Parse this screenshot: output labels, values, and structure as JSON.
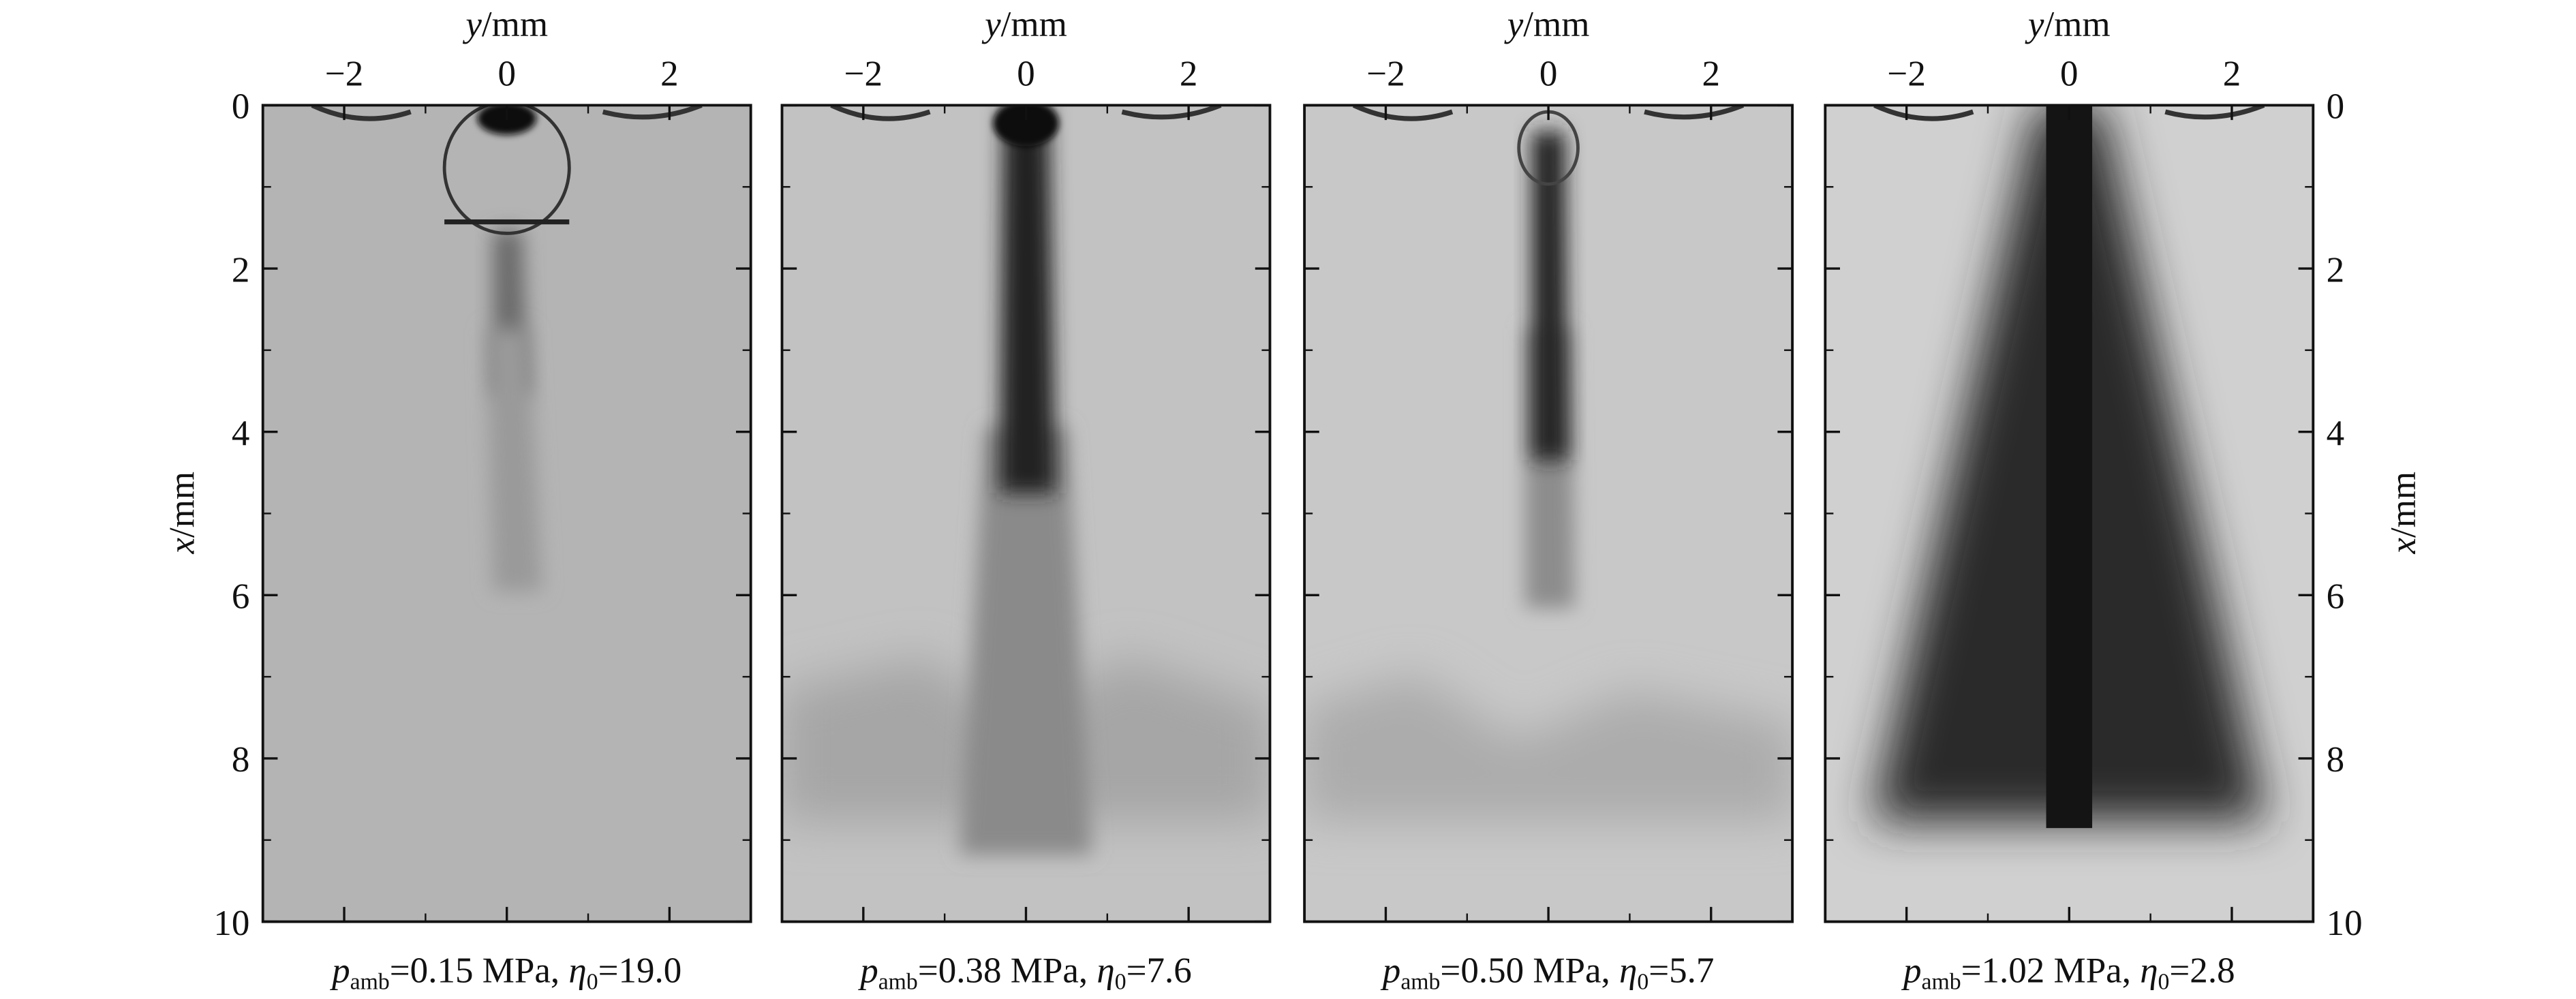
{
  "axes": {
    "top_label": [
      {
        "text": "y",
        "style": "italic"
      },
      {
        "text": "/mm"
      }
    ],
    "side_label": [
      {
        "text": "x",
        "style": "italic"
      },
      {
        "text": "/mm"
      }
    ],
    "ylim": [
      -3,
      3
    ],
    "yticks": [
      {
        "value": -2,
        "label": "−2"
      },
      0,
      2
    ],
    "xlim": [
      0,
      10
    ],
    "xticks": [
      0,
      2,
      4,
      6,
      8,
      10
    ]
  },
  "panels": [
    {
      "caption": [
        {
          "text": "p",
          "style": "italic"
        },
        {
          "text": "amb",
          "style": "sub"
        },
        {
          "text": "=0.15 MPa, "
        },
        {
          "text": "η",
          "style": "italic"
        },
        {
          "text": "0",
          "style": "sub"
        },
        {
          "text": "=19.0"
        }
      ]
    },
    {
      "caption": [
        {
          "text": "p",
          "style": "italic"
        },
        {
          "text": "amb",
          "style": "sub"
        },
        {
          "text": "=0.38 MPa, "
        },
        {
          "text": "η",
          "style": "italic"
        },
        {
          "text": "0",
          "style": "sub"
        },
        {
          "text": "=7.6"
        }
      ]
    },
    {
      "caption": [
        {
          "text": "p",
          "style": "italic"
        },
        {
          "text": "amb",
          "style": "sub"
        },
        {
          "text": "=0.50 MPa, "
        },
        {
          "text": "η",
          "style": "italic"
        },
        {
          "text": "0",
          "style": "sub"
        },
        {
          "text": "=5.7"
        }
      ]
    },
    {
      "caption": [
        {
          "text": "p",
          "style": "italic"
        },
        {
          "text": "amb",
          "style": "sub"
        },
        {
          "text": "=1.02 MPa, "
        },
        {
          "text": "η",
          "style": "italic"
        },
        {
          "text": "0",
          "style": "sub"
        },
        {
          "text": "=2.8"
        }
      ]
    }
  ]
}
